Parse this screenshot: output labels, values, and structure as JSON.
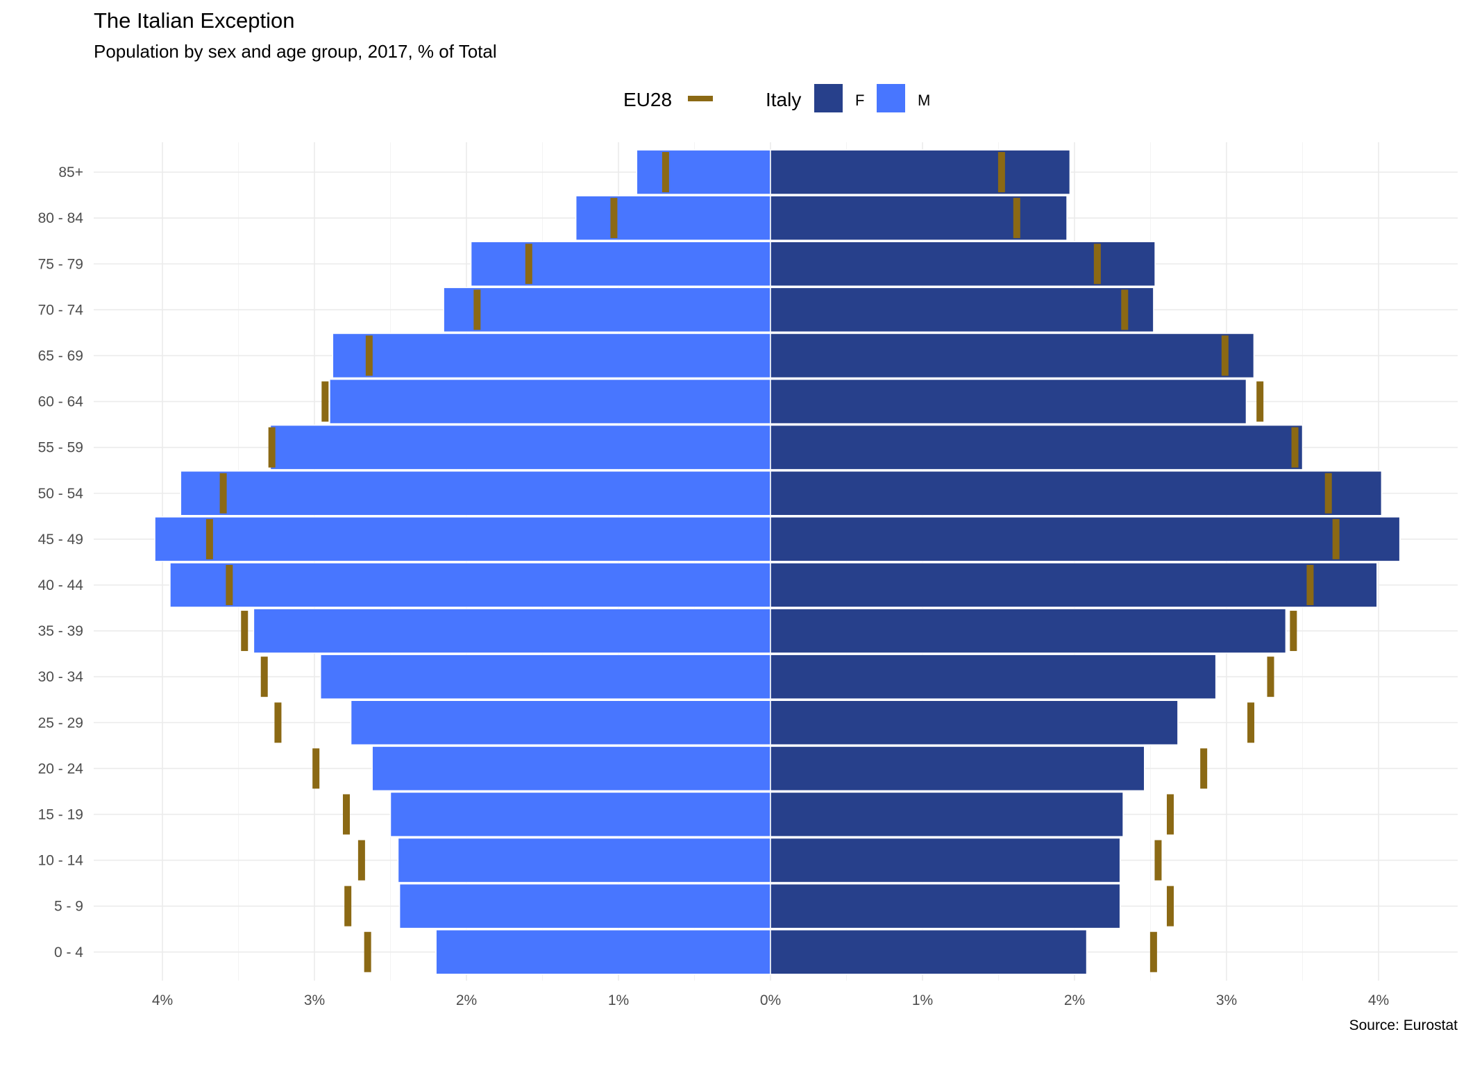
{
  "colors": {
    "female": "#27408B",
    "male": "#4876FF",
    "eu28": "#8B6914",
    "grid": "#ebebeb"
  },
  "chart_data": {
    "type": "bar",
    "orientation": "horizontal",
    "title": "The Italian Exception",
    "subtitle": "Population by sex and age group, 2017, % of Total",
    "caption": "Source: Eurostat",
    "legend": {
      "position": "top",
      "eu28_title": "EU28",
      "italy_title": "Italy",
      "female_label": "F",
      "male_label": "M"
    },
    "xlim": [
      -4.4,
      4.4
    ],
    "x_ticks": [
      -4,
      -3,
      -2,
      -1,
      0,
      1,
      2,
      3,
      4
    ],
    "x_tick_labels": [
      "4%",
      "3%",
      "2%",
      "1%",
      "0%",
      "1%",
      "2%",
      "3%",
      "4%"
    ],
    "categories": [
      "0 - 4",
      "5 - 9",
      "10 - 14",
      "15 - 19",
      "20 - 24",
      "25 - 29",
      "30 - 34",
      "35 - 39",
      "40 - 44",
      "45 - 49",
      "50 - 54",
      "55 - 59",
      "60 - 64",
      "65 - 69",
      "70 - 74",
      "75 - 79",
      "80 - 84",
      "85+"
    ],
    "series": [
      {
        "name": "Italy M",
        "values": [
          2.2,
          2.44,
          2.45,
          2.5,
          2.62,
          2.76,
          2.96,
          3.4,
          3.95,
          4.05,
          3.88,
          3.29,
          2.9,
          2.88,
          2.15,
          1.97,
          1.28,
          0.88
        ]
      },
      {
        "name": "Italy F",
        "values": [
          2.08,
          2.3,
          2.3,
          2.32,
          2.46,
          2.68,
          2.93,
          3.39,
          3.99,
          4.14,
          4.02,
          3.5,
          3.13,
          3.18,
          2.52,
          2.53,
          1.95,
          1.97
        ]
      },
      {
        "name": "EU28 M",
        "values": [
          2.65,
          2.78,
          2.69,
          2.79,
          2.99,
          3.24,
          3.33,
          3.46,
          3.56,
          3.69,
          3.6,
          3.28,
          2.93,
          2.64,
          1.93,
          1.59,
          1.03,
          0.69
        ]
      },
      {
        "name": "EU28 F",
        "values": [
          2.52,
          2.63,
          2.55,
          2.63,
          2.85,
          3.16,
          3.29,
          3.44,
          3.55,
          3.72,
          3.67,
          3.45,
          3.22,
          2.99,
          2.33,
          2.15,
          1.62,
          1.52
        ]
      }
    ]
  }
}
